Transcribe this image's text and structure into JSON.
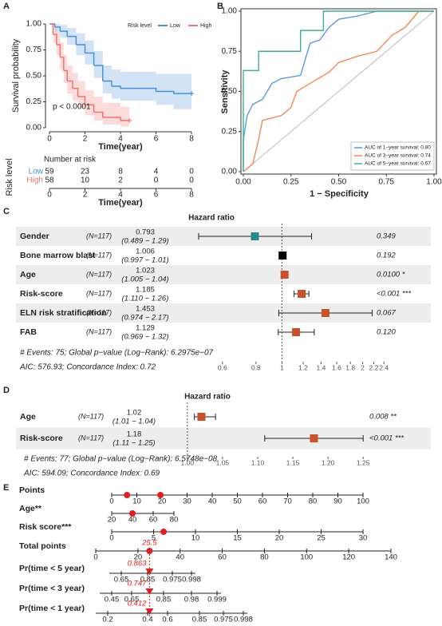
{
  "chart_data": [
    {
      "panel": "A",
      "type": "km",
      "y_label": "Survival probability",
      "x_label": "Time(year)",
      "xlim": [
        0,
        8
      ],
      "xticks": [
        0,
        2,
        4,
        6,
        8
      ],
      "ylim": [
        0,
        1
      ],
      "yticks": [
        {
          "value": 0,
          "label": "0.00"
        },
        {
          "value": 0.25,
          "label": "0.25"
        },
        {
          "value": 0.5,
          "label": "0.50"
        },
        {
          "value": 0.75,
          "label": "0.75"
        },
        {
          "value": 1,
          "label": "1.00"
        }
      ],
      "legend_title": "Risk level",
      "annotation": "p < 0.0001",
      "series": [
        {
          "name": "Low",
          "color": "#4a90d9",
          "x": [
            0,
            0.3,
            0.6,
            1,
            1.5,
            2,
            2.5,
            3,
            3.5,
            4,
            5,
            6,
            7,
            8
          ],
          "values": [
            1,
            0.97,
            0.93,
            0.88,
            0.8,
            0.72,
            0.6,
            0.45,
            0.4,
            0.38,
            0.38,
            0.35,
            0.33,
            0.33
          ],
          "lower": [
            1,
            0.92,
            0.87,
            0.8,
            0.7,
            0.61,
            0.48,
            0.33,
            0.28,
            0.26,
            0.26,
            0.22,
            0.18,
            0.18
          ],
          "upper": [
            1,
            1,
            0.99,
            0.96,
            0.91,
            0.84,
            0.74,
            0.6,
            0.56,
            0.54,
            0.54,
            0.52,
            0.52,
            0.52
          ]
        },
        {
          "name": "High",
          "color": "#ee7470",
          "x": [
            0,
            0.2,
            0.4,
            0.6,
            0.8,
            1,
            1.3,
            1.6,
            2,
            2.5,
            3,
            3.5,
            4,
            4.5
          ],
          "values": [
            1,
            0.9,
            0.8,
            0.68,
            0.55,
            0.45,
            0.38,
            0.3,
            0.22,
            0.15,
            0.1,
            0.1,
            0.07,
            0.07
          ],
          "lower": [
            1,
            0.82,
            0.7,
            0.56,
            0.43,
            0.33,
            0.26,
            0.19,
            0.12,
            0.07,
            0.03,
            0.03,
            0.01,
            0.01
          ],
          "upper": [
            1,
            0.98,
            0.92,
            0.82,
            0.7,
            0.6,
            0.53,
            0.45,
            0.36,
            0.3,
            0.24,
            0.24,
            0.2,
            0.2
          ]
        }
      ]
    },
    {
      "type": "table",
      "title": "Number at risk",
      "y_label": "Risk level",
      "x_label": "Time(year)",
      "xlim": [
        0,
        8
      ],
      "xticks": [
        0,
        2,
        4,
        6,
        8
      ],
      "rows": [
        {
          "name": "Low",
          "color": "#4a90d9",
          "values": [
            59,
            23,
            8,
            4,
            0
          ]
        },
        {
          "name": "High",
          "color": "#ee7470",
          "values": [
            58,
            10,
            2,
            0,
            0
          ]
        }
      ]
    },
    {
      "panel": "B",
      "type": "roc",
      "x_label": "1 − Specificity",
      "y_label": "Sensitivity",
      "xlim": [
        0,
        1
      ],
      "ylim": [
        0,
        1
      ],
      "xticks": [
        {
          "value": 0,
          "label": "0.00"
        },
        {
          "value": 0.25,
          "label": "0.25"
        },
        {
          "value": 0.5,
          "label": "0.50"
        },
        {
          "value": 0.75,
          "label": "0.75"
        },
        {
          "value": 1,
          "label": "1.00"
        }
      ],
      "yticks": [
        {
          "value": 0,
          "label": "0.00"
        },
        {
          "value": 0.25,
          "label": "0.25"
        },
        {
          "value": 0.5,
          "label": "0.50"
        },
        {
          "value": 0.75,
          "label": "0.75"
        },
        {
          "value": 1,
          "label": "1.00"
        }
      ],
      "series": [
        {
          "name": "AUC of 1−year survival: 0.80",
          "color": "#5b9bd5",
          "x": [
            0,
            0,
            0.02,
            0.05,
            0.1,
            0.15,
            0.2,
            0.3,
            0.35,
            0.4,
            0.45,
            0.5,
            0.6,
            0.7,
            1
          ],
          "values": [
            0,
            0.2,
            0.35,
            0.42,
            0.45,
            0.55,
            0.58,
            0.6,
            0.8,
            0.82,
            0.9,
            0.95,
            0.97,
            1,
            1
          ]
        },
        {
          "name": "AUC of 3−year survival: 0.74",
          "color": "#f08a50",
          "x": [
            0,
            0.05,
            0.08,
            0.1,
            0.2,
            0.25,
            0.28,
            0.35,
            0.45,
            0.5,
            0.6,
            0.7,
            0.78,
            0.85,
            0.92,
            1
          ],
          "values": [
            0,
            0.05,
            0.2,
            0.32,
            0.35,
            0.4,
            0.5,
            0.55,
            0.62,
            0.68,
            0.72,
            0.75,
            0.85,
            0.9,
            1,
            1
          ]
        },
        {
          "name": "AUC of 5−year survival: 0.67",
          "color": "#40b08a",
          "x": [
            0,
            0,
            0.08,
            0.08,
            0.3,
            0.3,
            0.42,
            0.42,
            1
          ],
          "values": [
            0,
            0.63,
            0.63,
            0.75,
            0.75,
            0.88,
            0.88,
            1,
            1
          ]
        }
      ]
    },
    {
      "panel": "C",
      "type": "forest",
      "title": "Hazard ratio",
      "log_scale": true,
      "xlim": [
        0.46,
        2.55
      ],
      "xticks": [
        0.6,
        0.8,
        1,
        1.2,
        1.4,
        1.6,
        1.8,
        2,
        2.2,
        2.4
      ],
      "rows": [
        {
          "name": "Gender",
          "n": "(N=117)",
          "hr": 0.793,
          "ci_label": "(0.489 − 1.29)",
          "lower": 0.489,
          "upper": 1.29,
          "p_label": "0.349",
          "color": "#2a8a8a"
        },
        {
          "name": "Bone marrow blast",
          "n": "(N=117)",
          "hr": 1.006,
          "ci_label": "(0.997 − 1.01)",
          "lower": 0.997,
          "upper": 1.01,
          "p_label": "0.192",
          "color": "#000000"
        },
        {
          "name": "Age",
          "n": "(N=117)",
          "hr": 1.023,
          "ci_label": "(1.005 − 1.04)",
          "lower": 1.005,
          "upper": 1.04,
          "p_label": "0.0100 *",
          "color": "#c8502a"
        },
        {
          "name": "Risk-score",
          "n": "(N=117)",
          "hr": 1.185,
          "ci_label": "(1.110 − 1.26)",
          "lower": 1.11,
          "upper": 1.26,
          "p_label": "<0.001 ***",
          "color": "#c8502a"
        },
        {
          "name": "ELN risk stratification",
          "n": "(N=117)",
          "hr": 1.453,
          "ci_label": "(0.974 − 2.17)",
          "lower": 0.974,
          "upper": 2.17,
          "p_label": "0.067",
          "color": "#c8502a"
        },
        {
          "name": "FAB",
          "n": "(N=117)",
          "hr": 1.129,
          "ci_label": "(0.969 − 1.32)",
          "lower": 0.969,
          "upper": 1.32,
          "p_label": "0.120",
          "color": "#c8502a"
        }
      ],
      "notes": [
        "# Events: 75; Global p−value (Log−Rank): 6.2975e−07",
        "AIC: 576.93; Concordance Index: 0.72"
      ]
    },
    {
      "panel": "D",
      "type": "forest",
      "title": "Hazard ratio",
      "log_scale": false,
      "xlim": [
        0.99,
        1.26
      ],
      "xticks": [
        {
          "value": 1,
          "label": "1.00"
        },
        {
          "value": 1.05,
          "label": "1.05"
        },
        {
          "value": 1.1,
          "label": "1.10"
        },
        {
          "value": 1.15,
          "label": "1.15"
        },
        {
          "value": 1.2,
          "label": "1.20"
        },
        {
          "value": 1.25,
          "label": "1.25"
        }
      ],
      "rows": [
        {
          "name": "Age",
          "n": "(N=117)",
          "hr": 1.02,
          "ci_label": "(1.01 − 1.04)",
          "lower": 1.01,
          "upper": 1.04,
          "p_label": "0.008 **",
          "color": "#c8502a"
        },
        {
          "name": "Risk-score",
          "n": "(N=117)",
          "hr": 1.18,
          "ci_label": "(1.11 − 1.25)",
          "lower": 1.11,
          "upper": 1.25,
          "p_label": "<0.001 ***",
          "color": "#c8502a"
        }
      ],
      "notes": [
        "# Events: 77; Global p−value (Log−Rank): 6.5748e−08",
        "AIC: 594.09; Concordance Index: 0.69"
      ]
    },
    {
      "panel": "E",
      "type": "nomogram",
      "color": "#e02020",
      "rows": [
        {
          "name": "Points",
          "ticks": [
            0,
            10,
            20,
            30,
            40,
            50,
            60,
            70,
            80,
            90,
            100
          ],
          "marks": [
            6.1,
            19.4
          ]
        },
        {
          "name": "Age**",
          "ticks": [
            20,
            40,
            60,
            80
          ],
          "marks": [
            40
          ]
        },
        {
          "name": "Risk score***",
          "ticks": [
            0,
            5,
            10,
            15,
            20,
            25,
            30
          ],
          "marks": [
            6.2
          ]
        },
        {
          "name": "Total points",
          "ticks": [
            0,
            20,
            40,
            60,
            80,
            100,
            120,
            140
          ],
          "marks": [
            25.5
          ]
        },
        {
          "name": "Pr(time < 5 year)",
          "ticks": [
            0.65,
            0.85,
            0.975,
            0.998
          ],
          "marks": [
            0.863
          ]
        },
        {
          "name": "Pr(time < 3 year)",
          "ticks": [
            0.45,
            0.65,
            0.85,
            0.98,
            0.999
          ],
          "marks": [
            0.747
          ]
        },
        {
          "name": "Pr(time < 1 year)",
          "ticks": [
            0.2,
            0.4,
            0.6,
            0.85,
            0.975,
            0.998
          ],
          "marks": [
            0.412
          ]
        }
      ]
    }
  ]
}
